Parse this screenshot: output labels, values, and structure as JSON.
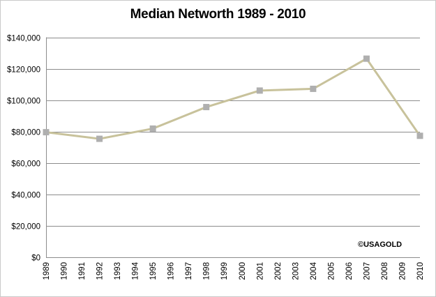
{
  "chart_data": {
    "type": "line",
    "title": "Median Networth 1989 - 2010",
    "xlabel": "",
    "ylabel": "",
    "categories": [
      "1989",
      "1990",
      "1991",
      "1992",
      "1993",
      "1994",
      "1995",
      "1996",
      "1997",
      "1998",
      "1999",
      "2000",
      "2001",
      "2002",
      "2003",
      "2004",
      "2005",
      "2006",
      "2007",
      "2008",
      "2009",
      "2010"
    ],
    "series": [
      {
        "points": [
          {
            "x": "1989",
            "y": 79600
          },
          {
            "x": "1992",
            "y": 75400
          },
          {
            "x": "1995",
            "y": 81900
          },
          {
            "x": "1998",
            "y": 95600
          },
          {
            "x": "2001",
            "y": 106100
          },
          {
            "x": "2004",
            "y": 107200
          },
          {
            "x": "2007",
            "y": 126400
          },
          {
            "x": "2010",
            "y": 77300
          }
        ]
      }
    ],
    "ylim": [
      0,
      140000
    ],
    "yticks": [
      {
        "value": 0,
        "label": "$0"
      },
      {
        "value": 20000,
        "label": "$20,000"
      },
      {
        "value": 40000,
        "label": "$40,000"
      },
      {
        "value": 60000,
        "label": "$60,000"
      },
      {
        "value": 80000,
        "label": "$80,000"
      },
      {
        "value": 100000,
        "label": "$100,000"
      },
      {
        "value": 120000,
        "label": "$120,000"
      },
      {
        "value": 140000,
        "label": "$140,000"
      }
    ],
    "grid": "horizontal",
    "legend": "none",
    "line_color": "#c8c29b",
    "marker_color": "#afafaf",
    "gridline_color": "#8c8c8c",
    "axis_color": "#8c8c8c",
    "watermark": "©USAGOLD"
  }
}
